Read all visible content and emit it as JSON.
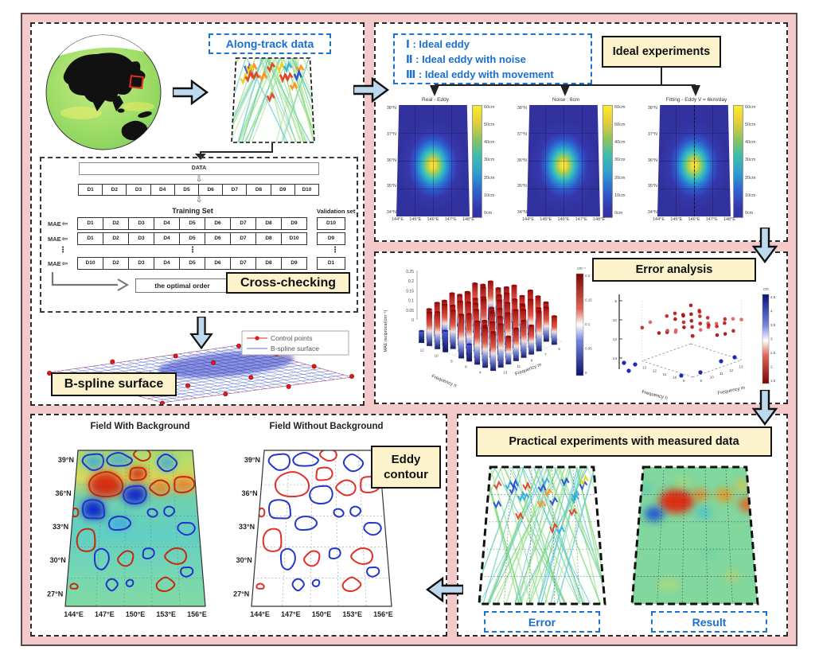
{
  "workflow": {
    "along_track_label": "Along-track data",
    "cross": {
      "title": "Cross-checking",
      "data_label": "DATA",
      "down_arrow": "⇩",
      "mae_label": "MAE",
      "mae_arrow": "⇦",
      "vdots": "⋮",
      "segments": [
        "D1",
        "D2",
        "D3",
        "D4",
        "D5",
        "D6",
        "D7",
        "D8",
        "D9",
        "D10"
      ],
      "training_header": "Training Set",
      "validation_header": "Validation set",
      "rows": [
        {
          "training": [
            "D1",
            "D2",
            "D3",
            "D4",
            "D5",
            "D6",
            "D7",
            "D8",
            "D9"
          ],
          "validation": "D10"
        },
        {
          "training": [
            "D1",
            "D2",
            "D3",
            "D4",
            "D5",
            "D6",
            "D7",
            "D8",
            "D10"
          ],
          "validation": "D9"
        },
        {
          "training": [
            "D10",
            "D2",
            "D3",
            "D4",
            "D5",
            "D6",
            "D7",
            "D8",
            "D9"
          ],
          "validation": "D1"
        }
      ],
      "optimal_label": "the optimal order"
    },
    "bspline": {
      "label": "B-spline surface",
      "legend_control": "Control points",
      "legend_surface": "B-spline surface"
    }
  },
  "ideal": {
    "title": "Ideal experiments",
    "legend_lines": [
      "Ⅰ : Ideal eddy",
      "Ⅱ : Ideal eddy with noise",
      "Ⅲ : Ideal eddy with movement"
    ],
    "plots": [
      {
        "title": "Real - Eddy"
      },
      {
        "title": "Noise : 6cm"
      },
      {
        "title": "Fitting - Eddy V = 6km/day"
      }
    ],
    "yticks": [
      "38°N",
      "37°N",
      "36°N",
      "35°N",
      "34°N"
    ],
    "xticks": [
      "144°E",
      "145°E",
      "146°E",
      "147°E",
      "148°E"
    ],
    "cbar_ticks": [
      "60cm",
      "50cm",
      "40cm",
      "30cm",
      "20cm",
      "10cm",
      "0cm"
    ]
  },
  "error": {
    "title": "Error analysis",
    "bar3d": {
      "zlabel": "MAE reciprocal(cm⁻¹)",
      "zticks": [
        "0.25",
        "0.2",
        "0.15",
        "0.1",
        "0.05",
        "0"
      ],
      "xlabel": "Frequency m",
      "ylabel": "Frequency n",
      "mticks": [
        "13",
        "11",
        "9",
        "7",
        "5"
      ],
      "nticks": [
        "4",
        "6",
        "8",
        "10",
        "12"
      ],
      "cbar_title": "cm⁻¹",
      "cbar_ticks": [
        "0.2",
        "0.15",
        "0.1",
        "0.05",
        "0"
      ]
    },
    "scatter3d": {
      "xlabel": "Frequency m",
      "ylabel": "Frequency n",
      "zticks": [
        "8",
        "10",
        "12",
        "14"
      ],
      "mticks": [
        "9",
        "10",
        "11",
        "12",
        "13"
      ],
      "nticks": [
        "13",
        "12",
        "11",
        "10",
        "9"
      ],
      "cbar_title": "cm",
      "cbar_ticks": [
        "4.5",
        "4",
        "3.5",
        "3",
        "2.5",
        "2",
        "1.5"
      ]
    }
  },
  "contour": {
    "label_line1": "Eddy",
    "label_line2": "contour",
    "left_title": "Field With Background",
    "right_title": "Field Without Background",
    "yticks": [
      "39°N",
      "36°N",
      "33°N",
      "30°N",
      "27°N"
    ],
    "xticks": [
      "144°E",
      "147°E",
      "150°E",
      "153°E",
      "156°E"
    ]
  },
  "practical": {
    "title": "Practical experiments with measured data",
    "error_label": "Error",
    "result_label": "Result"
  },
  "colors": {
    "accent_blue": "#1b74cf",
    "label_yellow": "#fcf3cd",
    "frame_pink": "#f4c9c9",
    "arrow_fill": "#bdd9f0"
  }
}
